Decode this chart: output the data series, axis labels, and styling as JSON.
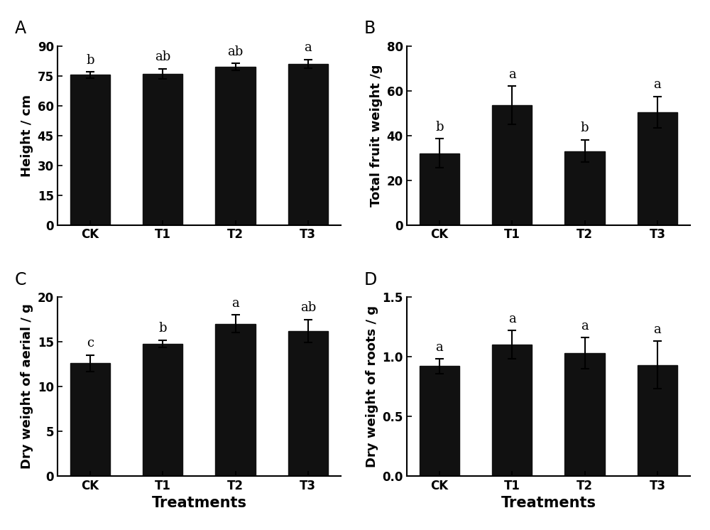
{
  "categories": [
    "CK",
    "T1",
    "T2",
    "T3"
  ],
  "subplots": [
    {
      "panel": "A",
      "ylabel": "Height / cm",
      "values": [
        75.5,
        76.0,
        79.5,
        81.0
      ],
      "errors": [
        1.5,
        2.5,
        1.8,
        2.2
      ],
      "letters": [
        "b",
        "ab",
        "ab",
        "a"
      ],
      "ylim": [
        0,
        90
      ],
      "yticks": [
        0,
        15,
        30,
        45,
        60,
        75,
        90
      ],
      "show_xlabel": false
    },
    {
      "panel": "B",
      "ylabel": "Total fruit weight /g",
      "values": [
        32.0,
        53.5,
        33.0,
        50.5
      ],
      "errors": [
        6.5,
        8.5,
        5.0,
        7.0
      ],
      "letters": [
        "b",
        "a",
        "b",
        "a"
      ],
      "ylim": [
        0,
        80
      ],
      "yticks": [
        0,
        20,
        40,
        60,
        80
      ],
      "show_xlabel": false
    },
    {
      "panel": "C",
      "ylabel": "Dry weight of aerial / g",
      "values": [
        12.6,
        14.8,
        17.0,
        16.2
      ],
      "errors": [
        0.9,
        0.4,
        1.0,
        1.3
      ],
      "letters": [
        "c",
        "b",
        "a",
        "ab"
      ],
      "ylim": [
        0,
        20
      ],
      "yticks": [
        0,
        5,
        10,
        15,
        20
      ],
      "show_xlabel": true
    },
    {
      "panel": "D",
      "ylabel": "Dry weight of roots / g",
      "values": [
        0.92,
        1.1,
        1.03,
        0.93
      ],
      "errors": [
        0.06,
        0.12,
        0.13,
        0.2
      ],
      "letters": [
        "a",
        "a",
        "a",
        "a"
      ],
      "ylim": [
        0.0,
        1.5
      ],
      "yticks": [
        0.0,
        0.5,
        1.0,
        1.5
      ],
      "show_xlabel": true
    }
  ],
  "bar_color": "#111111",
  "bar_width": 0.55,
  "capsize": 4,
  "letter_fontsize": 13,
  "label_fontsize": 13,
  "tick_fontsize": 12,
  "panel_fontsize": 17,
  "xlabel": "Treatments",
  "xlabel_fontsize": 15,
  "background_color": "#ffffff"
}
